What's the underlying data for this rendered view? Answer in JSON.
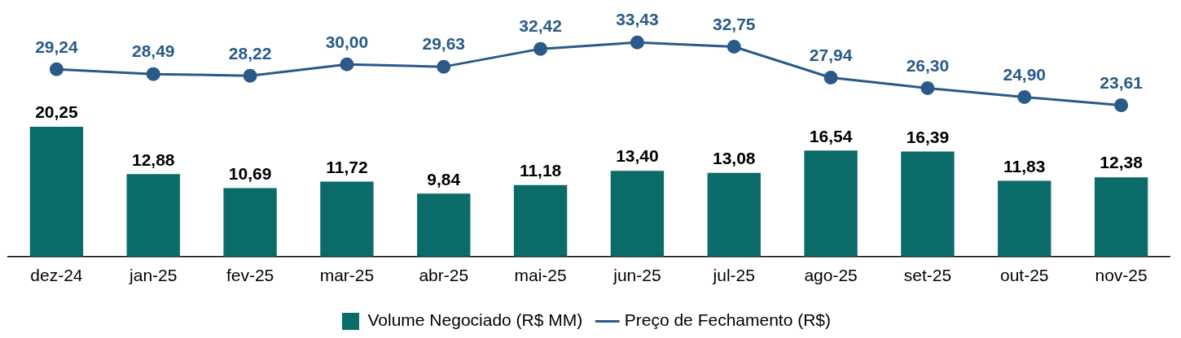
{
  "chart_data": {
    "type": "bar",
    "categories": [
      "dez-24",
      "jan-25",
      "fev-25",
      "mar-25",
      "abr-25",
      "mai-25",
      "jun-25",
      "jul-25",
      "ago-25",
      "set-25",
      "out-25",
      "nov-25"
    ],
    "series": [
      {
        "name": "Volume Negociado (R$ MM)",
        "color": "#0b6b69",
        "values": [
          20.25,
          12.88,
          10.69,
          11.72,
          9.84,
          11.18,
          13.4,
          13.08,
          16.54,
          16.39,
          11.83,
          12.38
        ],
        "value_labels": [
          "20,25",
          "12,88",
          "10,69",
          "11,72",
          "9,84",
          "11,18",
          "13,40",
          "13,08",
          "16,54",
          "16,39",
          "11,83",
          "12,38"
        ]
      },
      {
        "name": "Preço de Fechamento (R$)",
        "type": "line",
        "color": "#2a5a8a",
        "marker": "circle",
        "values": [
          29.24,
          28.49,
          28.22,
          30.0,
          29.63,
          32.42,
          33.43,
          32.75,
          27.94,
          26.3,
          24.9,
          23.61
        ],
        "value_labels": [
          "29,24",
          "28,49",
          "28,22",
          "30,00",
          "29,63",
          "32,42",
          "33,43",
          "32,75",
          "27,94",
          "26,30",
          "24,90",
          "23,61"
        ]
      }
    ],
    "grid": false,
    "legend": "bottom",
    "tick_labels": "x"
  }
}
